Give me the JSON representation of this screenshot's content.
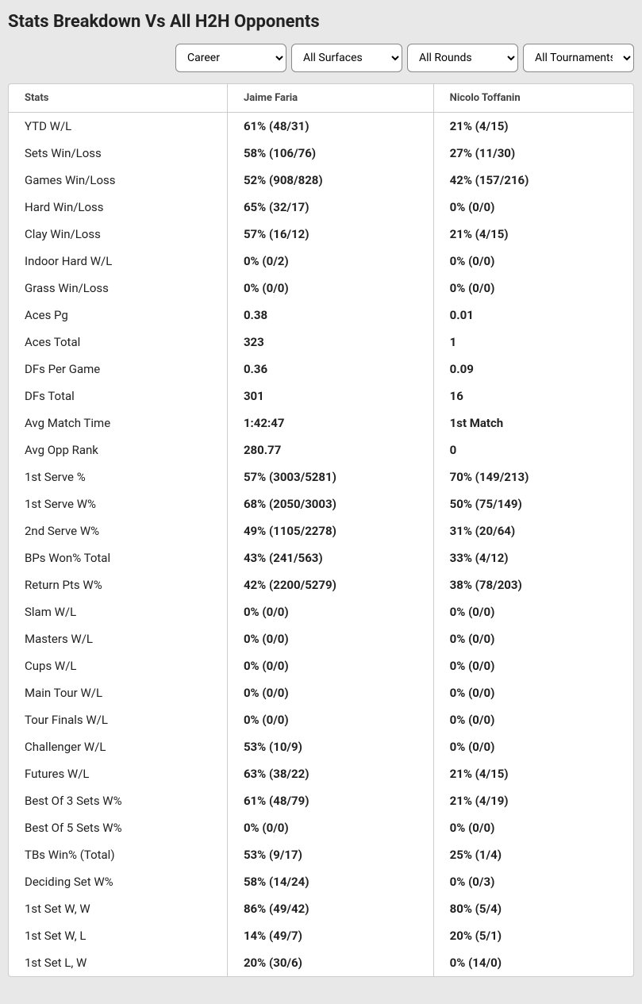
{
  "title": "Stats Breakdown Vs All H2H Opponents",
  "filters": {
    "period": {
      "selected": "Career",
      "options": [
        "Career"
      ]
    },
    "surface": {
      "selected": "All Surfaces",
      "options": [
        "All Surfaces"
      ]
    },
    "round": {
      "selected": "All Rounds",
      "options": [
        "All Rounds"
      ]
    },
    "tournament": {
      "selected": "All Tournaments",
      "options": [
        "All Tournaments"
      ]
    }
  },
  "columns": [
    "Stats",
    "Jaime Faria",
    "Nicolo Toffanin"
  ],
  "rows": [
    {
      "stat": "YTD W/L",
      "p1": "61% (48/31)",
      "p2": "21% (4/15)"
    },
    {
      "stat": "Sets Win/Loss",
      "p1": "58% (106/76)",
      "p2": "27% (11/30)"
    },
    {
      "stat": "Games Win/Loss",
      "p1": "52% (908/828)",
      "p2": "42% (157/216)"
    },
    {
      "stat": "Hard Win/Loss",
      "p1": "65% (32/17)",
      "p2": "0% (0/0)"
    },
    {
      "stat": "Clay Win/Loss",
      "p1": "57% (16/12)",
      "p2": "21% (4/15)"
    },
    {
      "stat": "Indoor Hard W/L",
      "p1": "0% (0/2)",
      "p2": "0% (0/0)"
    },
    {
      "stat": "Grass Win/Loss",
      "p1": "0% (0/0)",
      "p2": "0% (0/0)"
    },
    {
      "stat": "Aces Pg",
      "p1": "0.38",
      "p2": "0.01"
    },
    {
      "stat": "Aces Total",
      "p1": "323",
      "p2": "1"
    },
    {
      "stat": "DFs Per Game",
      "p1": "0.36",
      "p2": "0.09"
    },
    {
      "stat": "DFs Total",
      "p1": "301",
      "p2": "16"
    },
    {
      "stat": "Avg Match Time",
      "p1": "1:42:47",
      "p2": "1st Match"
    },
    {
      "stat": "Avg Opp Rank",
      "p1": "280.77",
      "p2": "0"
    },
    {
      "stat": "1st Serve %",
      "p1": "57% (3003/5281)",
      "p2": "70% (149/213)"
    },
    {
      "stat": "1st Serve W%",
      "p1": "68% (2050/3003)",
      "p2": "50% (75/149)"
    },
    {
      "stat": "2nd Serve W%",
      "p1": "49% (1105/2278)",
      "p2": "31% (20/64)"
    },
    {
      "stat": "BPs Won% Total",
      "p1": "43% (241/563)",
      "p2": "33% (4/12)"
    },
    {
      "stat": "Return Pts W%",
      "p1": "42% (2200/5279)",
      "p2": "38% (78/203)"
    },
    {
      "stat": "Slam W/L",
      "p1": "0% (0/0)",
      "p2": "0% (0/0)"
    },
    {
      "stat": "Masters W/L",
      "p1": "0% (0/0)",
      "p2": "0% (0/0)"
    },
    {
      "stat": "Cups W/L",
      "p1": "0% (0/0)",
      "p2": "0% (0/0)"
    },
    {
      "stat": "Main Tour W/L",
      "p1": "0% (0/0)",
      "p2": "0% (0/0)"
    },
    {
      "stat": "Tour Finals W/L",
      "p1": "0% (0/0)",
      "p2": "0% (0/0)"
    },
    {
      "stat": "Challenger W/L",
      "p1": "53% (10/9)",
      "p2": "0% (0/0)"
    },
    {
      "stat": "Futures W/L",
      "p1": "63% (38/22)",
      "p2": "21% (4/15)"
    },
    {
      "stat": "Best Of 3 Sets W%",
      "p1": "61% (48/79)",
      "p2": "21% (4/19)"
    },
    {
      "stat": "Best Of 5 Sets W%",
      "p1": "0% (0/0)",
      "p2": "0% (0/0)"
    },
    {
      "stat": "TBs Win% (Total)",
      "p1": "53% (9/17)",
      "p2": "25% (1/4)"
    },
    {
      "stat": "Deciding Set W%",
      "p1": "58% (14/24)",
      "p2": "0% (0/3)"
    },
    {
      "stat": "1st Set W, W",
      "p1": "86% (49/42)",
      "p2": "80% (5/4)"
    },
    {
      "stat": "1st Set W, L",
      "p1": "14% (49/7)",
      "p2": "20% (5/1)"
    },
    {
      "stat": "1st Set L, W",
      "p1": "20% (30/6)",
      "p2": "0% (14/0)"
    }
  ]
}
